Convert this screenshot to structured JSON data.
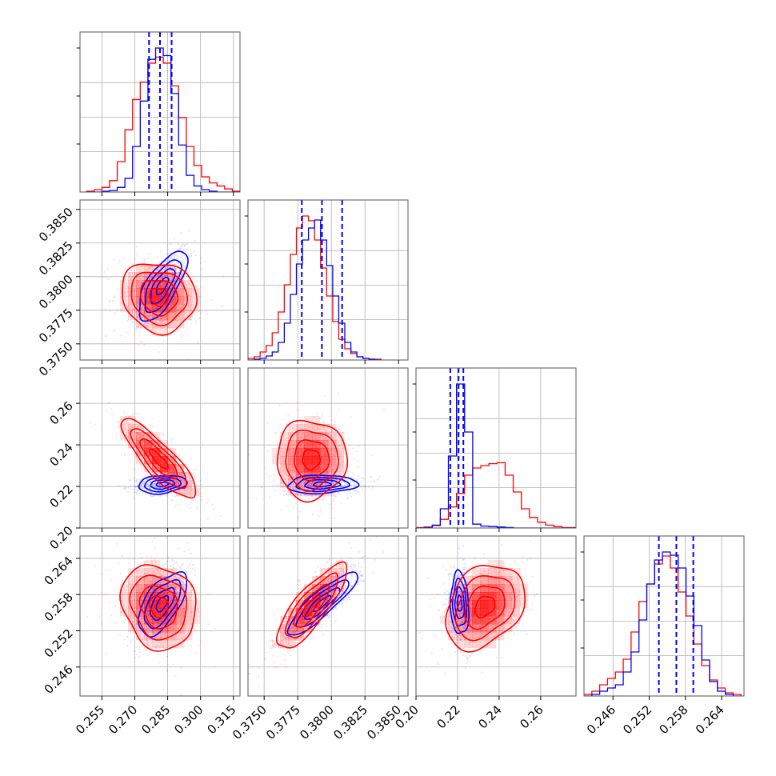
{
  "colors": {
    "series_a": "#ff0000",
    "series_b": "#0000ff",
    "grid": "#b0b0b0",
    "frame": "#555555"
  },
  "chart_data": {
    "type": "corner",
    "grid": true,
    "dimensions": [
      {
        "id": "p0",
        "lim": [
          0.245,
          0.318
        ],
        "ticks": [
          "0.255",
          "0.270",
          "0.285",
          "0.300",
          "0.315"
        ]
      },
      {
        "id": "p1",
        "lim": [
          0.3738,
          0.3857
        ],
        "ticks": [
          "0.3750",
          "0.3775",
          "0.3800",
          "0.3825",
          "0.3850"
        ]
      },
      {
        "id": "p2",
        "lim": [
          0.2,
          0.277
        ],
        "ticks": [
          "0.20",
          "0.22",
          "0.24",
          "0.26"
        ]
      },
      {
        "id": "p3",
        "lim": [
          0.2412,
          0.2677
        ],
        "ticks": [
          "0.246",
          "0.252",
          "0.258",
          "0.264"
        ]
      }
    ],
    "series": [
      {
        "color": "red",
        "mean": [
          0.281,
          0.3785,
          0.233,
          0.256
        ],
        "std": [
          0.0085,
          0.0013,
          0.0095,
          0.0035
        ],
        "correlations": [
          [
            0,
            2,
            -0.85
          ],
          [
            1,
            3,
            0.82
          ],
          [
            0,
            3,
            -0.15
          ],
          [
            2,
            3,
            0.3
          ],
          [
            0,
            1,
            -0.1
          ],
          [
            1,
            2,
            0.0
          ]
        ],
        "histograms": [
          {
            "bins": [
              0.248,
              0.2515,
              0.255,
              0.2585,
              0.262,
              0.2655,
              0.269,
              0.2725,
              0.276,
              0.2795,
              0.283,
              0.2865,
              0.29,
              0.2935,
              0.297,
              0.3005,
              0.304,
              0.3075,
              0.311,
              0.3145,
              0.318
            ],
            "counts": [
              1,
              3,
              6,
              15,
              40,
              82,
              122,
              145,
              170,
              178,
              170,
              140,
              98,
              60,
              35,
              20,
              12,
              8,
              4,
              1
            ]
          },
          {
            "bins": [
              0.3738,
              0.37425,
              0.3747,
              0.37515,
              0.3756,
              0.37605,
              0.3765,
              0.37695,
              0.3774,
              0.37785,
              0.3783,
              0.37875,
              0.3792,
              0.37965,
              0.3801,
              0.38055,
              0.381,
              0.38145,
              0.3819,
              0.38235,
              0.3828,
              0.38325,
              0.3837
            ],
            "counts": [
              2,
              4,
              10,
              18,
              34,
              60,
              94,
              132,
              165,
              180,
              174,
              150,
              115,
              80,
              48,
              26,
              14,
              8,
              4,
              2,
              1,
              1
            ]
          },
          {
            "bins": [
              0.2,
              0.2039,
              0.2078,
              0.2117,
              0.2156,
              0.2195,
              0.2234,
              0.2273,
              0.2312,
              0.2351,
              0.239,
              0.2429,
              0.2468,
              0.2507,
              0.2546,
              0.2585,
              0.2624,
              0.2663,
              0.2702,
              0.277
            ],
            "counts": [
              1,
              2,
              5,
              18,
              44,
              72,
              110,
              125,
              130,
              134,
              136,
              110,
              75,
              40,
              22,
              12,
              6,
              3,
              1
            ]
          },
          {
            "bins": [
              0.2412,
              0.2425,
              0.2438,
              0.2451,
              0.2464,
              0.2477,
              0.249,
              0.2503,
              0.2516,
              0.2529,
              0.2542,
              0.2555,
              0.2568,
              0.2581,
              0.2594,
              0.2607,
              0.262,
              0.2633,
              0.2646,
              0.2659,
              0.2672
            ],
            "counts": [
              2,
              6,
              14,
              22,
              30,
              46,
              80,
              118,
              140,
              165,
              175,
              160,
              130,
              100,
              65,
              38,
              20,
              10,
              4,
              2
            ]
          }
        ]
      },
      {
        "color": "blue",
        "mean": [
          0.2825,
          0.3793,
          0.221,
          0.2565
        ],
        "std": [
          0.0055,
          0.0013,
          0.0022,
          0.0026
        ],
        "correlations": [
          [
            0,
            1,
            0.7
          ],
          [
            1,
            3,
            0.88
          ],
          [
            0,
            3,
            0.6
          ],
          [
            0,
            2,
            0.2
          ],
          [
            1,
            2,
            0.1
          ],
          [
            2,
            3,
            -0.1
          ]
        ],
        "quantiles": [
          [
            0.2765,
            0.2815,
            0.2868
          ],
          [
            0.3778,
            0.3793,
            0.3808
          ],
          [
            0.2165,
            0.2205,
            0.2228
          ],
          [
            0.2536,
            0.2565,
            0.2593
          ]
        ],
        "histograms": [
          {
            "bins": [
              0.248,
              0.2515,
              0.255,
              0.2585,
              0.262,
              0.2655,
              0.269,
              0.2725,
              0.276,
              0.2795,
              0.283,
              0.2865,
              0.29,
              0.2935,
              0.297,
              0.3005,
              0.304,
              0.3075,
              0.311,
              0.3145,
              0.318
            ],
            "counts": [
              0,
              0,
              1,
              2,
              6,
              18,
              60,
              120,
              175,
              190,
              180,
              130,
              62,
              22,
              8,
              3,
              1,
              0,
              0,
              0
            ]
          },
          {
            "bins": [
              0.3738,
              0.37425,
              0.3747,
              0.37515,
              0.3756,
              0.37605,
              0.3765,
              0.37695,
              0.3774,
              0.37785,
              0.3783,
              0.37875,
              0.3792,
              0.37965,
              0.3801,
              0.38055,
              0.381,
              0.38145,
              0.3819,
              0.38235,
              0.3828,
              0.38325,
              0.3837
            ],
            "counts": [
              0,
              1,
              2,
              5,
              10,
              22,
              46,
              82,
              120,
              150,
              165,
              175,
              150,
              118,
              80,
              46,
              22,
              10,
              4,
              2,
              1,
              0
            ]
          },
          {
            "bins": [
              0.2,
              0.2039,
              0.2078,
              0.2117,
              0.2156,
              0.2195,
              0.2234,
              0.2273,
              0.2312,
              0.2351,
              0.239,
              0.2429,
              0.2468,
              0.2507,
              0.2546,
              0.2585,
              0.2624,
              0.2663,
              0.2702,
              0.277
            ],
            "counts": [
              0,
              1,
              6,
              40,
              150,
              300,
              200,
              8,
              4,
              3,
              2,
              1,
              0,
              0,
              0,
              0,
              0,
              0,
              0
            ]
          },
          {
            "bins": [
              0.2412,
              0.2425,
              0.2438,
              0.2451,
              0.2464,
              0.2477,
              0.249,
              0.2503,
              0.2516,
              0.2529,
              0.2542,
              0.2555,
              0.2568,
              0.2581,
              0.2594,
              0.2607,
              0.262,
              0.2633,
              0.2646,
              0.2659,
              0.2672
            ],
            "counts": [
              0,
              2,
              6,
              10,
              14,
              30,
              55,
              95,
              140,
              170,
              180,
              176,
              160,
              125,
              88,
              45,
              18,
              6,
              2,
              0
            ]
          }
        ]
      }
    ]
  }
}
